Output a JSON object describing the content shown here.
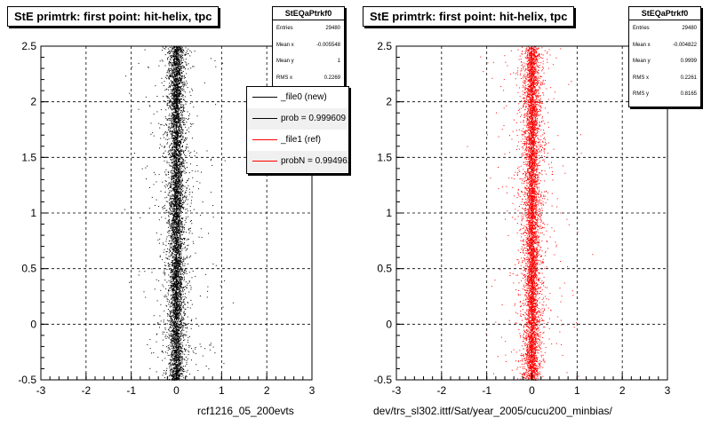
{
  "panels": [
    {
      "title": "StE primtrk: first point: hit-helix, tpc",
      "stats": {
        "name": "StEQaPtrkf0",
        "rows": [
          {
            "label": "Entries",
            "value": "29480"
          },
          {
            "label": "Mean x",
            "value": "-0.005548"
          },
          {
            "label": "Mean y",
            "value": "1"
          },
          {
            "label": "RMS x",
            "value": "0.2269"
          }
        ]
      },
      "legend": [
        {
          "label": "_file0 (new)",
          "color": "#000000"
        },
        {
          "label": "prob = 0.999609",
          "color": "#000000"
        },
        {
          "label": "_file1 (ref)",
          "color": "#ff0000"
        },
        {
          "label": "probN = 0.994961",
          "color": "#ff0000"
        }
      ],
      "filename": "rcf1216_05_200evts"
    },
    {
      "title": "StE primtrk: first point: hit-helix, tpc",
      "stats": {
        "name": "StEQaPtrkf0",
        "rows": [
          {
            "label": "Entries",
            "value": "29480"
          },
          {
            "label": "Mean x",
            "value": "-0.004822"
          },
          {
            "label": "Mean y",
            "value": "0.9999"
          },
          {
            "label": "RMS x",
            "value": "0.2261"
          },
          {
            "label": "RMS y",
            "value": "0.8165"
          }
        ]
      },
      "filename": "dev/trs_sl302.ittf/Sat/year_2005/cucu200_minbias/"
    }
  ],
  "chart_data": [
    {
      "type": "scatter",
      "title": "StE primtrk: first point: hit-helix, tpc",
      "xlim": [
        -3,
        3
      ],
      "ylim": [
        -0.5,
        2.5
      ],
      "xticks": [
        "-3",
        "-2",
        "-1",
        "0",
        "1",
        "2",
        "3"
      ],
      "yticks": [
        "-0.5",
        "0",
        "0.5",
        "1",
        "1.5",
        "2",
        "2.5"
      ],
      "grid": true,
      "series": [
        {
          "name": "_file0 (new)",
          "color": "#000000",
          "entries": 29480,
          "mean_x": -0.005548,
          "mean_y": 1,
          "rms_x": 0.2269,
          "y_distribution": "uniform"
        }
      ],
      "legend_position": "top-right"
    },
    {
      "type": "scatter",
      "title": "StE primtrk: first point: hit-helix, tpc",
      "xlim": [
        -3,
        3
      ],
      "ylim": [
        -0.5,
        2.5
      ],
      "xticks": [
        "-3",
        "-2",
        "-1",
        "0",
        "1",
        "2",
        "3"
      ],
      "yticks": [
        "-0.5",
        "0",
        "0.5",
        "1",
        "1.5",
        "2",
        "2.5"
      ],
      "grid": true,
      "series": [
        {
          "color": "#ff0000",
          "entries": 29480,
          "mean_x": -0.004822,
          "mean_y": 0.9999,
          "rms_x": 0.2261,
          "rms_y": 0.8165,
          "y_distribution": "uniform"
        }
      ]
    }
  ]
}
